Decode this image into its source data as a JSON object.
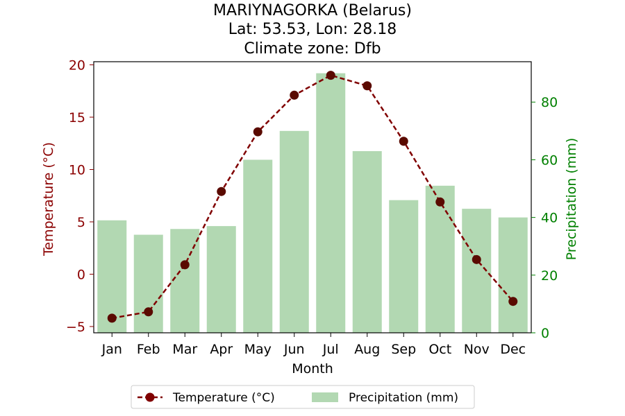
{
  "chart_data": {
    "type": "bar",
    "title_lines": [
      "MARIYNAGORKA (Belarus)",
      "Lat: 53.53, Lon: 28.18",
      "Climate zone: Dfb"
    ],
    "xlabel": "Month",
    "ylabel_left": "Temperature (°C)",
    "ylabel_right": "Precipitation (mm)",
    "categories": [
      "Jan",
      "Feb",
      "Mar",
      "Apr",
      "May",
      "Jun",
      "Jul",
      "Aug",
      "Sep",
      "Oct",
      "Nov",
      "Dec"
    ],
    "series": [
      {
        "name": "Temperature (°C)",
        "type": "line",
        "axis": "left",
        "values": [
          -4.2,
          -3.6,
          0.9,
          7.9,
          13.6,
          17.1,
          19.0,
          18.0,
          12.7,
          6.9,
          1.4,
          -2.6
        ],
        "color": "#800000"
      },
      {
        "name": "Precipitation (mm)",
        "type": "bar",
        "axis": "right",
        "values": [
          39,
          34,
          36,
          37,
          60,
          70,
          90,
          63,
          46,
          51,
          43,
          40
        ],
        "color": "#b2d8b2"
      }
    ],
    "ylim_left": [
      -5.6,
      20.3
    ],
    "ylim_right": [
      0,
      94
    ],
    "yticks_left": [
      -5,
      0,
      5,
      10,
      15,
      20
    ],
    "yticks_left_labels": [
      "−5",
      "0",
      "5",
      "10",
      "15",
      "20"
    ],
    "yticks_right": [
      0,
      20,
      40,
      60,
      80
    ],
    "yticks_right_labels": [
      "0",
      "20",
      "40",
      "60",
      "80"
    ],
    "left_axis_color": "#8b0000",
    "right_axis_color": "#008000",
    "grid": false,
    "legend_placement": "bottom-center"
  }
}
